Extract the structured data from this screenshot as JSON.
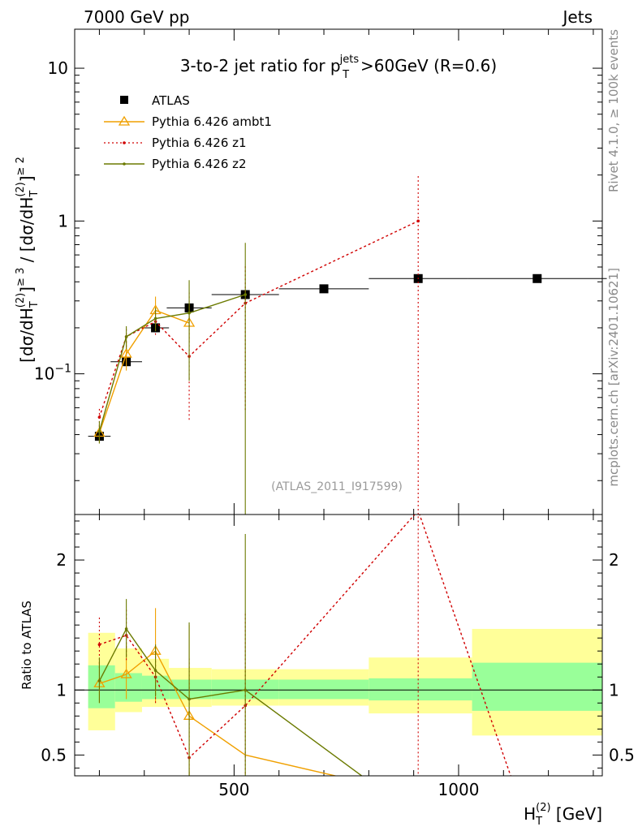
{
  "header": {
    "energy_label": "7000 GeV pp",
    "category_label": "Jets"
  },
  "side_text": {
    "rivet": "Rivet 4.1.0, ≥ 100k events",
    "source": "mcplots.cern.ch [arXiv:2401.10621]"
  },
  "chart_data": [
    {
      "type": "scatter",
      "panel": "main",
      "title": "3-to-2 jet ratio for p_T^jets >60GeV (R=0.6)",
      "title_parts": {
        "prefix": "3-to-2 jet ratio for p",
        "sub": "T",
        "sup": "jets",
        "suffix": ">60GeV (R=0.6)"
      },
      "analysis_label": "(ATLAS_2011_I917599)",
      "ylabel": "[dσ/dH_T^(2)]^≥3 / [dσ/dH_T^(2)]^≥2",
      "ylabel_parts": [
        "[dσ/dH",
        "T",
        "(2)",
        "]",
        "≥ 3",
        " / [dσ/dH",
        "T",
        "(2)",
        "]",
        "≥ 2"
      ],
      "yscale": "log",
      "ylim": [
        0.012,
        18
      ],
      "xlim": [
        145,
        1320
      ],
      "yticks": [
        {
          "value": 0.1,
          "base": "10",
          "exp": "−1"
        },
        {
          "value": 1,
          "base": "1",
          "exp": ""
        },
        {
          "value": 10,
          "base": "10",
          "exp": ""
        }
      ],
      "legend_position": "top-left",
      "series": [
        {
          "name": "ATLAS",
          "kind": "data",
          "color": "#000000",
          "x": [
            200,
            260,
            325,
            400,
            525,
            700,
            910,
            1175
          ],
          "y": [
            0.039,
            0.12,
            0.2,
            0.27,
            0.33,
            0.36,
            0.42,
            0.42
          ],
          "xerr": [
            25,
            35,
            30,
            50,
            75,
            100,
            110,
            155
          ]
        },
        {
          "name": "Pythia 6.426 ambt1",
          "kind": "mc",
          "color": "#f0a000",
          "marker": "triangle",
          "dash": "",
          "x": [
            200,
            260,
            325,
            400
          ],
          "y": [
            0.041,
            0.135,
            0.26,
            0.215
          ],
          "err_lo": [
            0.035,
            0.105,
            0.21,
            0.16
          ],
          "err_hi": [
            0.047,
            0.165,
            0.32,
            0.29
          ]
        },
        {
          "name": "Pythia 6.426 z1",
          "kind": "mc",
          "color": "#d00000",
          "marker": "dot",
          "dash": "3,3",
          "x": [
            200,
            260,
            325,
            400,
            525,
            910
          ],
          "y": [
            0.052,
            0.175,
            0.22,
            0.13,
            0.29,
            1.0
          ],
          "err_lo": [
            0.045,
            0.15,
            0.18,
            0.05,
            0.058,
            0.012
          ],
          "err_hi": [
            0.06,
            0.2,
            0.26,
            0.34,
            0.52,
            2.0
          ]
        },
        {
          "name": "Pythia 6.426 z2",
          "kind": "mc",
          "color": "#6b7a00",
          "marker": "dot",
          "dash": "",
          "x": [
            200,
            260,
            325,
            400,
            525
          ],
          "y": [
            0.042,
            0.175,
            0.23,
            0.25,
            0.33
          ],
          "err_lo": [
            0.035,
            0.145,
            0.19,
            0.09,
            0.012
          ],
          "err_hi": [
            0.049,
            0.205,
            0.27,
            0.41,
            0.72
          ]
        }
      ]
    },
    {
      "type": "line",
      "panel": "ratio",
      "ylabel": "Ratio to ATLAS",
      "ylim": [
        0.34,
        2.35
      ],
      "xlim": [
        145,
        1320
      ],
      "yticks": [
        0.5,
        1,
        2
      ],
      "ytick_labels": [
        "0.5",
        "1",
        "2"
      ],
      "xticks": [
        500,
        1000
      ],
      "xtick_labels": [
        "500",
        "1000"
      ],
      "xlabel": "H_T^(2) [GeV]",
      "xlabel_parts": [
        "H",
        "T",
        "(2)",
        " [GeV]"
      ],
      "bands": [
        {
          "x0": 175,
          "x1": 235,
          "inner": [
            0.86,
            1.19
          ],
          "outer": [
            0.69,
            1.44
          ]
        },
        {
          "x0": 235,
          "x1": 295,
          "inner": [
            0.91,
            1.13
          ],
          "outer": [
            0.83,
            1.32
          ]
        },
        {
          "x0": 295,
          "x1": 355,
          "inner": [
            0.93,
            1.11
          ],
          "outer": [
            0.87,
            1.24
          ]
        },
        {
          "x0": 355,
          "x1": 450,
          "inner": [
            0.93,
            1.08
          ],
          "outer": [
            0.87,
            1.17
          ]
        },
        {
          "x0": 450,
          "x1": 600,
          "inner": [
            0.93,
            1.08
          ],
          "outer": [
            0.88,
            1.16
          ]
        },
        {
          "x0": 600,
          "x1": 800,
          "inner": [
            0.93,
            1.08
          ],
          "outer": [
            0.88,
            1.16
          ]
        },
        {
          "x0": 800,
          "x1": 1030,
          "inner": [
            0.92,
            1.09
          ],
          "outer": [
            0.82,
            1.25
          ]
        },
        {
          "x0": 1030,
          "x1": 1320,
          "inner": [
            0.84,
            1.21
          ],
          "outer": [
            0.65,
            1.47
          ]
        }
      ],
      "series": [
        {
          "name": "Pythia 6.426 ambt1",
          "color": "#f0a000",
          "marker": "triangle",
          "dash": "",
          "x": [
            200,
            260,
            325,
            400,
            525,
            750
          ],
          "y": [
            1.05,
            1.12,
            1.3,
            0.8,
            0.5,
            0.32
          ],
          "err_lo": [
            0.9,
            0.93,
            0.9,
            0.28,
            null,
            null
          ],
          "err_hi": [
            1.22,
            1.36,
            1.63,
            1.5,
            null,
            null
          ]
        },
        {
          "name": "Pythia 6.426 z1",
          "color": "#d00000",
          "marker": "dot",
          "dash": "3,3",
          "x": [
            200,
            260,
            325,
            400,
            525,
            910,
            1120
          ],
          "y": [
            1.35,
            1.42,
            1.1,
            0.48,
            0.88,
            2.38,
            0.3
          ],
          "err_lo": [
            1.17,
            1.23,
            0.9,
            0.2,
            0.2,
            0.2,
            null
          ],
          "err_hi": [
            1.56,
            1.62,
            1.3,
            1.25,
            1.6,
            2.38,
            null
          ]
        },
        {
          "name": "Pythia 6.426 z2",
          "color": "#6b7a00",
          "marker": "dot",
          "dash": "",
          "x": [
            200,
            260,
            325,
            400,
            525,
            800
          ],
          "y": [
            1.07,
            1.47,
            1.15,
            0.93,
            1.0,
            0.3
          ],
          "err_lo": [
            0.9,
            1.25,
            0.95,
            0.3,
            0.2,
            null
          ],
          "err_hi": [
            1.25,
            1.7,
            1.35,
            1.52,
            2.2,
            null
          ]
        }
      ]
    }
  ]
}
